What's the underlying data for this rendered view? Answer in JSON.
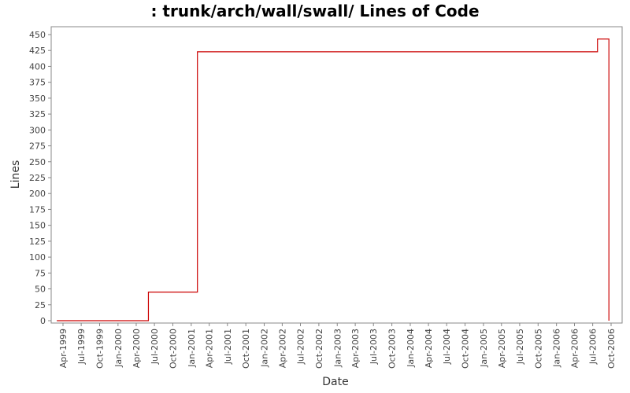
{
  "chart_data": {
    "type": "line",
    "title": ": trunk/arch/wall/swall/ Lines of Code",
    "xlabel": "Date",
    "ylabel": "Lines",
    "ylim": [
      0,
      460
    ],
    "y_ticks": [
      0,
      25,
      50,
      75,
      100,
      125,
      150,
      175,
      200,
      225,
      250,
      275,
      300,
      325,
      350,
      375,
      400,
      425,
      450
    ],
    "x_ticks": [
      "Apr-1999",
      "Jul-1999",
      "Oct-1999",
      "Jan-2000",
      "Apr-2000",
      "Jul-2000",
      "Oct-2000",
      "Jan-2001",
      "Apr-2001",
      "Jul-2001",
      "Oct-2001",
      "Jan-2002",
      "Apr-2002",
      "Jul-2002",
      "Oct-2002",
      "Jan-2003",
      "Apr-2003",
      "Jul-2003",
      "Oct-2003",
      "Jan-2004",
      "Apr-2004",
      "Jul-2004",
      "Oct-2004",
      "Jan-2005",
      "Apr-2005",
      "Jul-2005",
      "Oct-2005",
      "Jan-2006",
      "Apr-2006",
      "Jul-2006",
      "Oct-2006"
    ],
    "step": true,
    "grid": false,
    "series": [
      {
        "color": "#cc0000",
        "points": [
          {
            "x": "1999-03-01",
            "y": 0
          },
          {
            "x": "2000-06-01",
            "y": 45
          },
          {
            "x": "2001-02-01",
            "y": 423
          },
          {
            "x": "2006-07-25",
            "y": 443
          },
          {
            "x": "2006-09-20",
            "y": 0
          }
        ]
      }
    ]
  }
}
